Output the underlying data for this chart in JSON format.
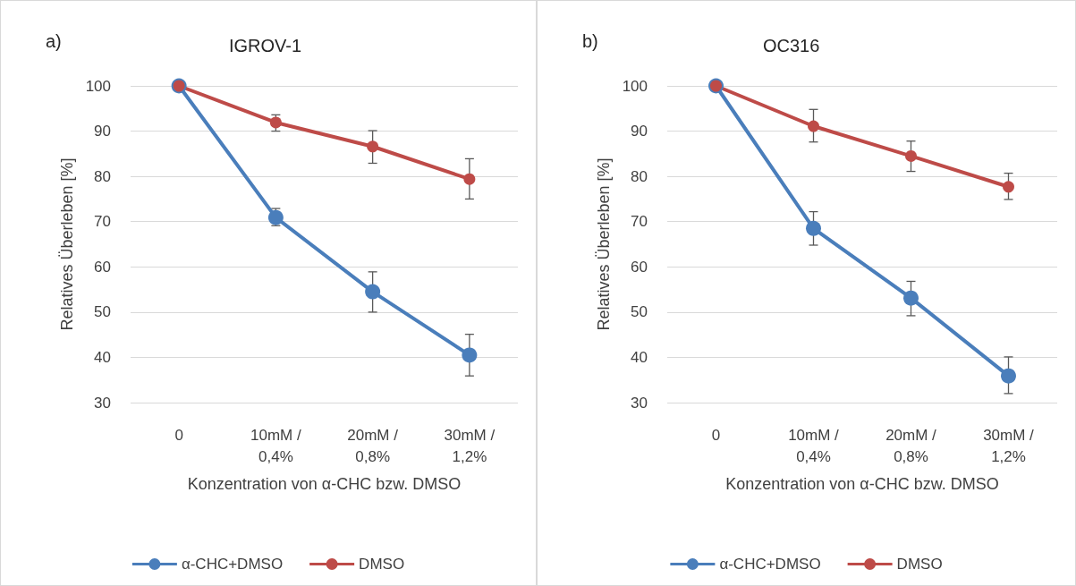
{
  "chart_data": [
    {
      "type": "line",
      "title": "IGROV-1",
      "annotations": [
        "a)"
      ],
      "xlabel": "Konzentration von α-CHC bzw. DMSO",
      "ylabel": "Relatives Überleben [%]",
      "categories": [
        "0",
        "10mM /\n0,4%",
        "20mM /\n0,8%",
        "30mM /\n1,2%"
      ],
      "series": [
        {
          "name": "α-CHC+DMSO",
          "color": "#4a7ebb",
          "values": [
            100,
            70.9,
            54.5,
            40.5
          ],
          "errors": [
            null,
            [
              69.1,
              72.9
            ],
            [
              50,
              58.9
            ],
            [
              35.9,
              45.1
            ]
          ]
        },
        {
          "name": "DMSO",
          "color": "#be4b48",
          "values": [
            100,
            91.9,
            86.6,
            79.4
          ],
          "errors": [
            null,
            [
              90,
              93.6
            ],
            [
              82.9,
              90.1
            ],
            [
              75,
              83.9
            ]
          ]
        }
      ],
      "ylim": [
        30,
        100
      ],
      "yticks": [
        30,
        40,
        50,
        60,
        70,
        80,
        90,
        100
      ],
      "grid": "y",
      "legend": "bottom",
      "marker": "circle",
      "line_style": "solid"
    },
    {
      "type": "line",
      "title": "OC316",
      "annotations": [
        "b)"
      ],
      "xlabel": "Konzentration von α-CHC bzw. DMSO",
      "ylabel": "Relatives Überleben [%]",
      "categories": [
        "0",
        "10mM /\n0,4%",
        "20mM /\n0,8%",
        "30mM /\n1,2%"
      ],
      "series": [
        {
          "name": "α-CHC+DMSO",
          "color": "#4a7ebb",
          "values": [
            100,
            68.5,
            53.1,
            35.9
          ],
          "errors": [
            null,
            [
              64.8,
              72.2
            ],
            [
              49.2,
              56.8
            ],
            [
              32,
              40.1
            ]
          ]
        },
        {
          "name": "DMSO",
          "color": "#be4b48",
          "values": [
            100,
            91.1,
            84.5,
            77.7
          ],
          "errors": [
            null,
            [
              87.6,
              94.8
            ],
            [
              81.1,
              87.8
            ],
            [
              74.9,
              80.7
            ]
          ]
        }
      ],
      "ylim": [
        30,
        100
      ],
      "yticks": [
        30,
        40,
        50,
        60,
        70,
        80,
        90,
        100
      ],
      "grid": "y",
      "legend": "bottom",
      "marker": "circle",
      "line_style": "solid"
    }
  ]
}
